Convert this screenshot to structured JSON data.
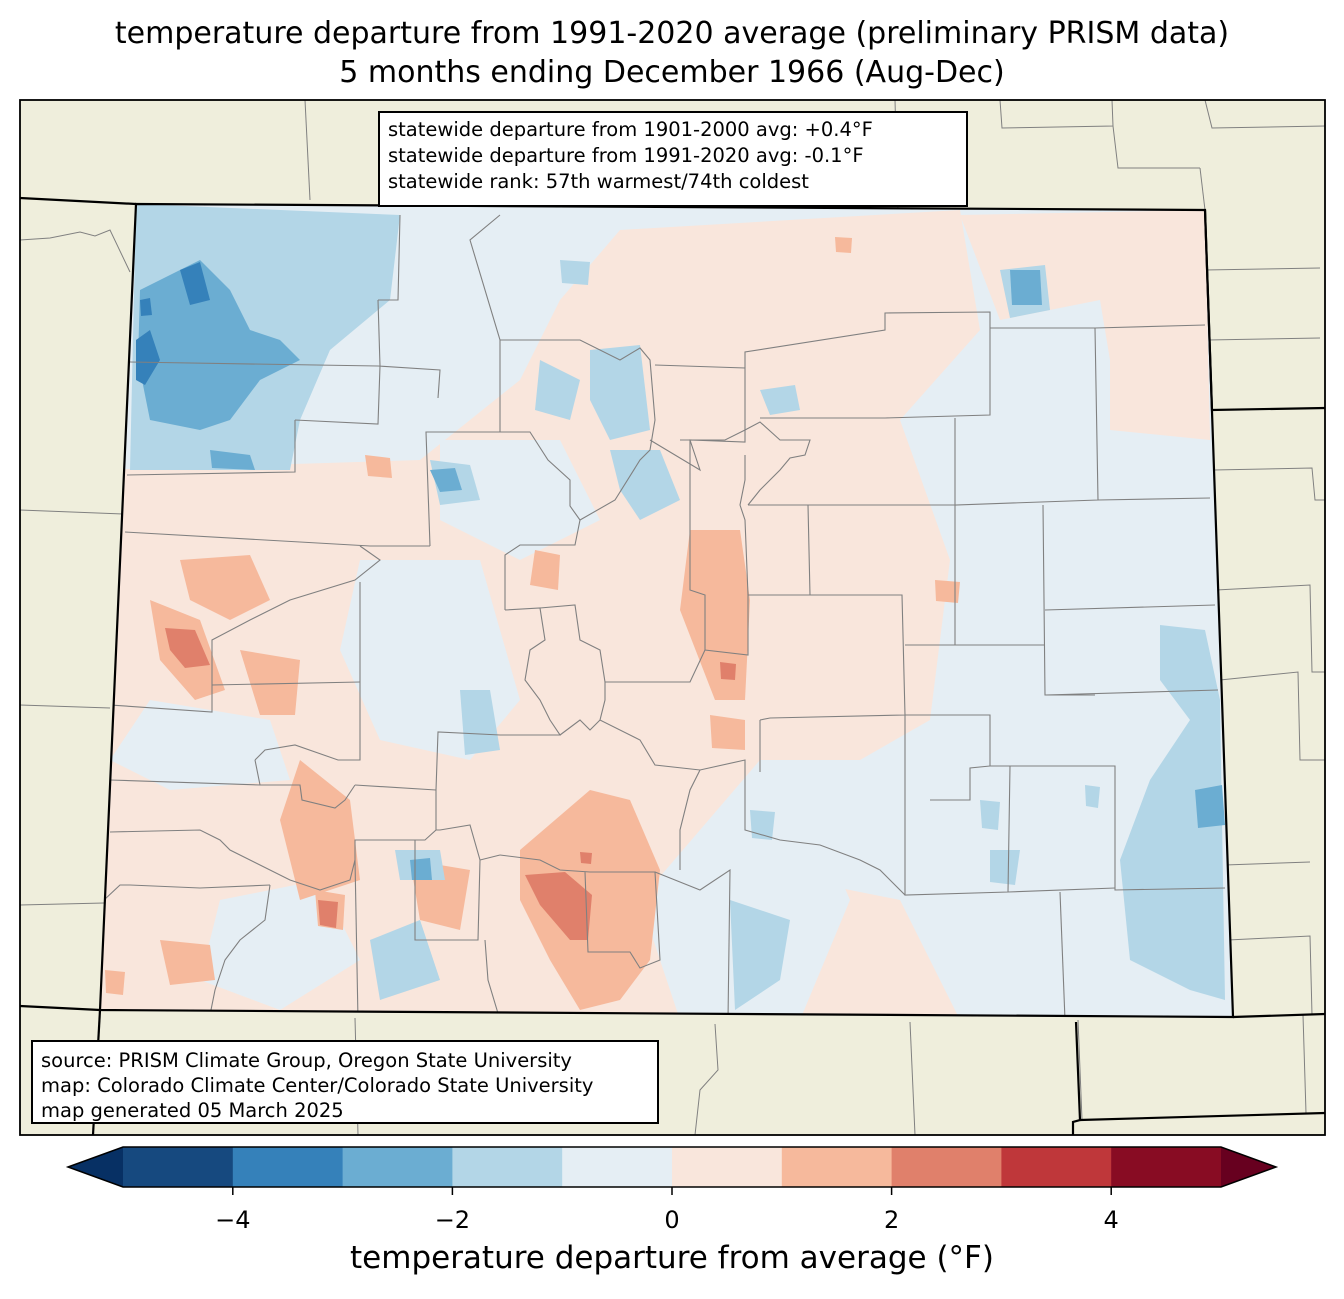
{
  "title": {
    "line1": "temperature departure from 1991-2020 average (preliminary PRISM data)",
    "line2": "5 months ending December 1966 (Aug-Dec)"
  },
  "stats_box": {
    "line1": "statewide departure from 1901-2000 avg: +0.4°F",
    "line2": "statewide departure from 1991-2020 avg: -0.1°F",
    "line3": "statewide rank: 57th warmest/74th coldest"
  },
  "credits_box": {
    "line1": "source: PRISM Climate Group, Oregon State University",
    "line2": "map: Colorado Climate Center/Colorado State University",
    "line3": "map generated 05 March 2025"
  },
  "colorbar": {
    "label": "temperature departure from average (°F)",
    "ticks": [
      "−4",
      "−2",
      "0",
      "2",
      "4"
    ],
    "tick_values": [
      -4,
      -2,
      0,
      2,
      4
    ],
    "range": [
      -5,
      5
    ],
    "bins": [
      {
        "from": -5,
        "to": -4,
        "color": "#16497f"
      },
      {
        "from": -4,
        "to": -3,
        "color": "#3581ba"
      },
      {
        "from": -3,
        "to": -2,
        "color": "#6badd2"
      },
      {
        "from": -2,
        "to": -1,
        "color": "#b3d6e7"
      },
      {
        "from": -1,
        "to": 0,
        "color": "#e5eef4"
      },
      {
        "from": 0,
        "to": 1,
        "color": "#f9e6dc"
      },
      {
        "from": 1,
        "to": 2,
        "color": "#f6b99c"
      },
      {
        "from": 2,
        "to": 3,
        "color": "#e0806b"
      },
      {
        "from": 3,
        "to": 4,
        "color": "#bf373a"
      },
      {
        "from": 4,
        "to": 5,
        "color": "#880c23"
      }
    ],
    "under_color": "#073064",
    "over_color": "#67001f"
  },
  "colors": {
    "land": "#efeedc",
    "state_border": "#000000",
    "county_border": "#808080"
  }
}
